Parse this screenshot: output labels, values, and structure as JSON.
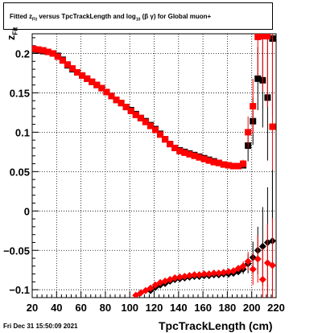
{
  "title": {
    "prefix": "Fitted  z",
    "sub1": "Fit",
    "middle": "  versus TpcTrackLength and log",
    "sub2": "10",
    "suffix": "(β  γ) for Global muon+"
  },
  "footer": {
    "date": "Fri Dec 31 15:50:09 2021"
  },
  "axes": {
    "xlabel": "TpcTrackLength (cm)",
    "ylabel_main": "z",
    "ylabel_sub": "Fit"
  },
  "chart_data": {
    "type": "scatter",
    "title": "Fitted z_Fit versus TpcTrackLength and log10(β γ) for Global muon+",
    "xlabel": "TpcTrackLength (cm)",
    "ylabel": "z_Fit",
    "xlim": [
      20,
      220
    ],
    "ylim": [
      -0.11,
      0.225
    ],
    "xticks": [
      20,
      40,
      60,
      80,
      100,
      120,
      140,
      160,
      180,
      200,
      220
    ],
    "yticks": [
      -0.1,
      -0.05,
      0,
      0.05,
      0.1,
      0.15,
      0.2
    ],
    "ytick_labels": [
      "−0.1",
      "−0.05",
      "0",
      "0.05",
      "0.1",
      "0.15",
      "0.2"
    ],
    "grid": true,
    "series": [
      {
        "color": "#000000",
        "marker": "square",
        "role": "upper-black",
        "points": [
          [
            21,
            0.205
          ],
          [
            25,
            0.204
          ],
          [
            29,
            0.203
          ],
          [
            33,
            0.202
          ],
          [
            37,
            0.2
          ],
          [
            41,
            0.197
          ],
          [
            45,
            0.192
          ],
          [
            49,
            0.185
          ],
          [
            53,
            0.18
          ],
          [
            57,
            0.176
          ],
          [
            61,
            0.172
          ],
          [
            65,
            0.168
          ],
          [
            69,
            0.164
          ],
          [
            73,
            0.16
          ],
          [
            77,
            0.156
          ],
          [
            81,
            0.151
          ],
          [
            85,
            0.146
          ],
          [
            89,
            0.141
          ],
          [
            93,
            0.137
          ],
          [
            97,
            0.132
          ],
          [
            101,
            0.128
          ],
          [
            105,
            0.123
          ],
          [
            109,
            0.118
          ],
          [
            113,
            0.114
          ],
          [
            117,
            0.109
          ],
          [
            121,
            0.104
          ],
          [
            125,
            0.098
          ],
          [
            129,
            0.091
          ],
          [
            133,
            0.085
          ],
          [
            137,
            0.08
          ],
          [
            141,
            0.077
          ],
          [
            145,
            0.075
          ],
          [
            149,
            0.073
          ],
          [
            153,
            0.071
          ],
          [
            157,
            0.069
          ],
          [
            161,
            0.067
          ],
          [
            165,
            0.065
          ],
          [
            169,
            0.063
          ],
          [
            173,
            0.061
          ],
          [
            177,
            0.059
          ],
          [
            181,
            0.058
          ],
          [
            185,
            0.057
          ],
          [
            189,
            0.057
          ],
          [
            193,
            0.058
          ],
          [
            197,
            0.083
          ],
          [
            201,
            0.114
          ],
          [
            205,
            0.168
          ],
          [
            209,
            0.166
          ],
          [
            213,
            0.144
          ],
          [
            217,
            0.219
          ]
        ],
        "errors": [
          [
            193,
            0.004
          ],
          [
            197,
            0.02
          ],
          [
            201,
            0.03
          ],
          [
            205,
            0.04
          ],
          [
            209,
            0.06
          ],
          [
            213,
            0.08
          ],
          [
            217,
            0.1
          ]
        ]
      },
      {
        "color": "#ff0000",
        "marker": "square",
        "role": "upper-red",
        "points": [
          [
            21,
            0.206
          ],
          [
            25,
            0.205
          ],
          [
            29,
            0.204
          ],
          [
            33,
            0.202
          ],
          [
            37,
            0.2
          ],
          [
            41,
            0.196
          ],
          [
            45,
            0.191
          ],
          [
            49,
            0.186
          ],
          [
            53,
            0.181
          ],
          [
            57,
            0.176
          ],
          [
            61,
            0.172
          ],
          [
            65,
            0.168
          ],
          [
            69,
            0.164
          ],
          [
            73,
            0.16
          ],
          [
            77,
            0.156
          ],
          [
            81,
            0.151
          ],
          [
            85,
            0.146
          ],
          [
            89,
            0.141
          ],
          [
            93,
            0.137
          ],
          [
            97,
            0.132
          ],
          [
            101,
            0.127
          ],
          [
            105,
            0.122
          ],
          [
            109,
            0.118
          ],
          [
            113,
            0.113
          ],
          [
            117,
            0.108
          ],
          [
            121,
            0.103
          ],
          [
            125,
            0.097
          ],
          [
            129,
            0.091
          ],
          [
            133,
            0.085
          ],
          [
            137,
            0.08
          ],
          [
            141,
            0.076
          ],
          [
            145,
            0.074
          ],
          [
            149,
            0.072
          ],
          [
            153,
            0.07
          ],
          [
            157,
            0.068
          ],
          [
            161,
            0.066
          ],
          [
            165,
            0.064
          ],
          [
            169,
            0.062
          ],
          [
            173,
            0.061
          ],
          [
            177,
            0.059
          ],
          [
            181,
            0.058
          ],
          [
            185,
            0.057
          ],
          [
            189,
            0.057
          ],
          [
            193,
            0.06
          ],
          [
            197,
            0.1
          ],
          [
            201,
            0.133
          ],
          [
            205,
            0.221
          ],
          [
            209,
            0.222
          ],
          [
            213,
            0.222
          ],
          [
            217,
            0.107
          ]
        ],
        "errors": [
          [
            193,
            0.005
          ],
          [
            197,
            0.02
          ],
          [
            201,
            0.035
          ],
          [
            205,
            0.05
          ],
          [
            209,
            0.07
          ],
          [
            213,
            0.09
          ],
          [
            217,
            0.12
          ]
        ]
      },
      {
        "color": "#000000",
        "marker": "diamond",
        "role": "lower-black",
        "points": [
          [
            117,
            -0.101
          ],
          [
            121,
            -0.097
          ],
          [
            125,
            -0.094
          ],
          [
            129,
            -0.092
          ],
          [
            133,
            -0.089
          ],
          [
            137,
            -0.087
          ],
          [
            141,
            -0.086
          ],
          [
            145,
            -0.085
          ],
          [
            149,
            -0.084
          ],
          [
            153,
            -0.083
          ],
          [
            157,
            -0.083
          ],
          [
            161,
            -0.082
          ],
          [
            165,
            -0.082
          ],
          [
            169,
            -0.081
          ],
          [
            173,
            -0.081
          ],
          [
            177,
            -0.08
          ],
          [
            181,
            -0.08
          ],
          [
            185,
            -0.079
          ],
          [
            189,
            -0.077
          ],
          [
            193,
            -0.074
          ],
          [
            197,
            -0.067
          ],
          [
            201,
            -0.059
          ],
          [
            205,
            -0.05
          ],
          [
            209,
            -0.045
          ],
          [
            213,
            -0.04
          ],
          [
            217,
            -0.038
          ]
        ],
        "errors": [
          [
            189,
            0.004
          ],
          [
            193,
            0.006
          ],
          [
            197,
            0.012
          ],
          [
            201,
            0.02
          ],
          [
            205,
            0.03
          ],
          [
            209,
            0.05
          ],
          [
            213,
            0.07
          ],
          [
            217,
            0.09
          ]
        ]
      },
      {
        "color": "#ff0000",
        "marker": "diamond",
        "role": "lower-red",
        "points": [
          [
            105,
            -0.107
          ],
          [
            109,
            -0.104
          ],
          [
            113,
            -0.101
          ],
          [
            117,
            -0.098
          ],
          [
            121,
            -0.094
          ],
          [
            125,
            -0.091
          ],
          [
            129,
            -0.089
          ],
          [
            133,
            -0.087
          ],
          [
            137,
            -0.085
          ],
          [
            141,
            -0.084
          ],
          [
            145,
            -0.083
          ],
          [
            149,
            -0.082
          ],
          [
            153,
            -0.081
          ],
          [
            157,
            -0.081
          ],
          [
            161,
            -0.08
          ],
          [
            165,
            -0.08
          ],
          [
            169,
            -0.079
          ],
          [
            173,
            -0.079
          ],
          [
            177,
            -0.078
          ],
          [
            181,
            -0.077
          ],
          [
            185,
            -0.076
          ],
          [
            189,
            -0.073
          ],
          [
            193,
            -0.07
          ],
          [
            197,
            -0.064
          ],
          [
            201,
            -0.074
          ],
          [
            205,
            -0.061
          ],
          [
            209,
            -0.087
          ],
          [
            213,
            -0.066
          ],
          [
            217,
            -0.069
          ]
        ],
        "errors": [
          [
            189,
            0.004
          ],
          [
            193,
            0.006
          ],
          [
            197,
            0.012
          ],
          [
            201,
            0.02
          ],
          [
            205,
            0.03
          ],
          [
            209,
            0.04
          ],
          [
            213,
            0.05
          ],
          [
            217,
            0.06
          ]
        ]
      }
    ]
  }
}
